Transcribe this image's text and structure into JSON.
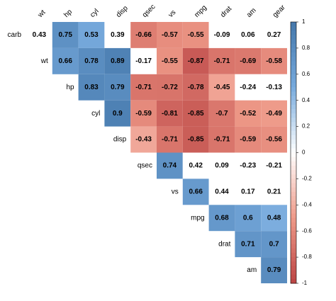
{
  "chart_data": {
    "type": "heatmap",
    "columns": [
      "wt",
      "hp",
      "cyl",
      "disp",
      "qsec",
      "vs",
      "mpg",
      "drat",
      "am",
      "gear"
    ],
    "rows": [
      "carb",
      "wt",
      "hp",
      "cyl",
      "disp",
      "qsec",
      "vs",
      "mpg",
      "drat",
      "am"
    ],
    "values": [
      [
        0.43,
        0.75,
        0.53,
        0.39,
        -0.66,
        -0.57,
        -0.55,
        -0.09,
        0.06,
        0.27
      ],
      [
        null,
        0.66,
        0.78,
        0.89,
        -0.17,
        -0.55,
        -0.87,
        -0.71,
        -0.69,
        -0.58
      ],
      [
        null,
        null,
        0.83,
        0.79,
        -0.71,
        -0.72,
        -0.78,
        -0.45,
        -0.24,
        -0.13
      ],
      [
        null,
        null,
        null,
        0.9,
        -0.59,
        -0.81,
        -0.85,
        -0.7,
        -0.52,
        -0.49
      ],
      [
        null,
        null,
        null,
        null,
        -0.43,
        -0.71,
        -0.85,
        -0.71,
        -0.59,
        -0.56
      ],
      [
        null,
        null,
        null,
        null,
        null,
        0.74,
        0.42,
        0.09,
        -0.23,
        -0.21
      ],
      [
        null,
        null,
        null,
        null,
        null,
        null,
        0.66,
        0.44,
        0.17,
        0.21
      ],
      [
        null,
        null,
        null,
        null,
        null,
        null,
        null,
        0.68,
        0.6,
        0.48
      ],
      [
        null,
        null,
        null,
        null,
        null,
        null,
        null,
        null,
        0.71,
        0.7
      ],
      [
        null,
        null,
        null,
        null,
        null,
        null,
        null,
        null,
        null,
        0.79
      ]
    ],
    "significant": [
      [
        false,
        true,
        true,
        false,
        true,
        true,
        true,
        false,
        false,
        false
      ],
      [
        null,
        true,
        true,
        true,
        false,
        true,
        true,
        true,
        true,
        true
      ],
      [
        null,
        null,
        true,
        true,
        true,
        true,
        true,
        true,
        false,
        false
      ],
      [
        null,
        null,
        null,
        true,
        true,
        true,
        true,
        true,
        true,
        true
      ],
      [
        null,
        null,
        null,
        null,
        true,
        true,
        true,
        true,
        true,
        true
      ],
      [
        null,
        null,
        null,
        null,
        null,
        true,
        false,
        false,
        false,
        false
      ],
      [
        null,
        null,
        null,
        null,
        null,
        null,
        true,
        false,
        false,
        false
      ],
      [
        null,
        null,
        null,
        null,
        null,
        null,
        null,
        true,
        true,
        true
      ],
      [
        null,
        null,
        null,
        null,
        null,
        null,
        null,
        null,
        true,
        true
      ],
      [
        null,
        null,
        null,
        null,
        null,
        null,
        null,
        null,
        null,
        true
      ]
    ],
    "colormap": [
      "#BB4444",
      "#EE9988",
      "#FFFFFF",
      "#77AADD",
      "#4477AA"
    ],
    "clim": [
      -1,
      1
    ],
    "cticks": [
      1,
      0.8,
      0.6,
      0.4,
      0.2,
      0,
      -0.2,
      -0.4,
      -0.6,
      -0.8,
      -1
    ]
  }
}
